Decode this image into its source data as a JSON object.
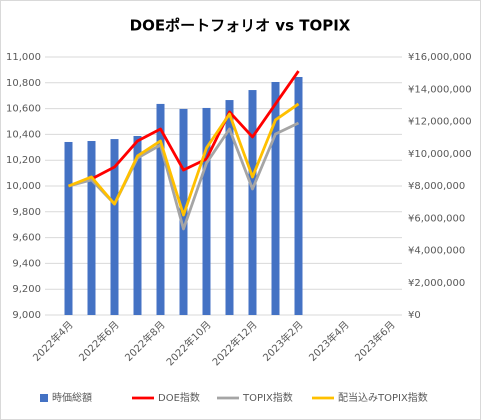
{
  "chart_data": {
    "type": "bar_line",
    "title": "DOEポートフォリオ vs TOPIX",
    "categories": [
      "2022年4月",
      null,
      "2022年6月",
      null,
      "2022年8月",
      null,
      "2022年10月",
      null,
      "2022年12月",
      null,
      "2023年2月",
      null,
      "2023年4月",
      null,
      "2023年6月"
    ],
    "series": [
      {
        "name": "時価総額",
        "type": "bar",
        "axis": "y2",
        "color": "#4472c4",
        "values": [
          10730000,
          10790000,
          10910000,
          11100000,
          13090000,
          12780000,
          12840000,
          13330000,
          13950000,
          14450000,
          14760000,
          null,
          null,
          null,
          null
        ]
      },
      {
        "name": "DOE指数",
        "type": "line",
        "color": "#ff0000",
        "values": [
          10000,
          10054,
          10147,
          10349,
          10442,
          10124,
          10209,
          10574,
          10380,
          10636,
          10891,
          null,
          null,
          null,
          null
        ]
      },
      {
        "name": "TOPIX指数",
        "type": "line",
        "color": "#a5a5a5",
        "values": [
          10000,
          10047,
          9860,
          10217,
          10318,
          9667,
          10178,
          10442,
          9977,
          10403,
          10488,
          null,
          null,
          null,
          null
        ]
      },
      {
        "name": "配当込みTOPIX指数",
        "type": "line",
        "color": "#ffc000",
        "values": [
          10000,
          10070,
          9860,
          10233,
          10349,
          9775,
          10295,
          10558,
          10070,
          10512,
          10636,
          null,
          null,
          null,
          null
        ]
      }
    ],
    "ylim": [
      9000,
      11000
    ],
    "yticks": [
      {
        "value": 9000,
        "label": "9,000"
      },
      {
        "value": 9200,
        "label": "9,200"
      },
      {
        "value": 9400,
        "label": "9,400"
      },
      {
        "value": 9600,
        "label": "9,600"
      },
      {
        "value": 9800,
        "label": "9,800"
      },
      {
        "value": 10000,
        "label": "10,000"
      },
      {
        "value": 10200,
        "label": "10,200"
      },
      {
        "value": 10400,
        "label": "10,400"
      },
      {
        "value": 10600,
        "label": "10,600"
      },
      {
        "value": 10800,
        "label": "10,800"
      },
      {
        "value": 11000,
        "label": "11,000"
      }
    ],
    "y2lim": [
      0,
      16000000
    ],
    "y2ticks": [
      {
        "value": 0,
        "label": "¥0"
      },
      {
        "value": 2000000,
        "label": "¥2,000,000"
      },
      {
        "value": 4000000,
        "label": "¥4,000,000"
      },
      {
        "value": 6000000,
        "label": "¥6,000,000"
      },
      {
        "value": 8000000,
        "label": "¥8,000,000"
      },
      {
        "value": 10000000,
        "label": "¥10,000,000"
      },
      {
        "value": 12000000,
        "label": "¥12,000,000"
      },
      {
        "value": 14000000,
        "label": "¥14,000,000"
      },
      {
        "value": 16000000,
        "label": "¥16,000,000"
      }
    ],
    "grid": true,
    "legend": "bottom"
  }
}
